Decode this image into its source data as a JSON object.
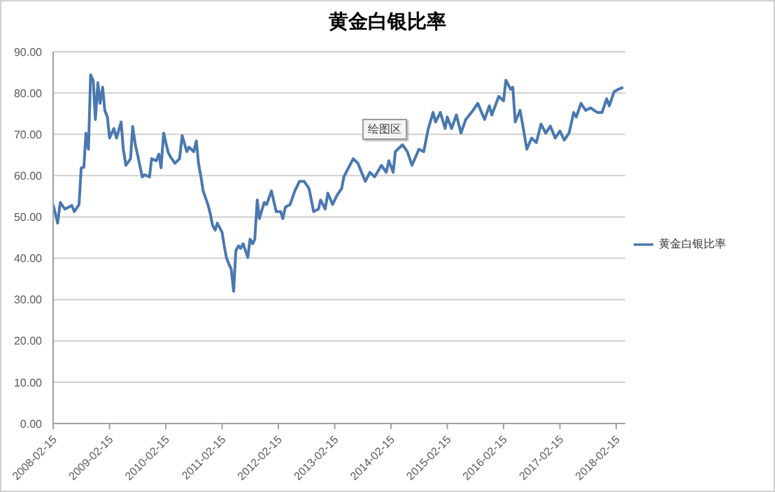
{
  "chart_data": {
    "type": "line",
    "title": "黄金白银比率",
    "annotations": [
      "绘图区"
    ],
    "x": [
      "2008-02-15",
      "2008-03-15",
      "2008-04-01",
      "2008-05-01",
      "2008-06-15",
      "2008-07-01",
      "2008-08-01",
      "2008-08-15",
      "2008-09-01",
      "2008-09-15",
      "2008-10-01",
      "2008-10-15",
      "2008-11-01",
      "2008-11-15",
      "2008-12-01",
      "2008-12-15",
      "2009-01-01",
      "2009-01-15",
      "2009-02-01",
      "2009-02-15",
      "2009-03-15",
      "2009-04-01",
      "2009-05-01",
      "2009-05-15",
      "2009-06-01",
      "2009-07-01",
      "2009-07-15",
      "2009-08-01",
      "2009-08-15",
      "2009-09-15",
      "2009-10-01",
      "2009-11-01",
      "2009-11-15",
      "2009-12-15",
      "2010-01-01",
      "2010-01-15",
      "2010-02-01",
      "2010-03-01",
      "2010-03-15",
      "2010-04-15",
      "2010-05-15",
      "2010-06-01",
      "2010-07-01",
      "2010-07-15",
      "2010-08-15",
      "2010-09-01",
      "2010-09-15",
      "2010-10-01",
      "2010-10-15",
      "2010-11-15",
      "2010-12-01",
      "2010-12-15",
      "2011-01-01",
      "2011-01-15",
      "2011-02-15",
      "2011-03-01",
      "2011-03-15",
      "2011-04-01",
      "2011-04-15",
      "2011-05-01",
      "2011-05-15",
      "2011-06-01",
      "2011-06-15",
      "2011-07-01",
      "2011-08-01",
      "2011-08-15",
      "2011-09-01",
      "2011-09-15",
      "2011-10-01",
      "2011-10-15",
      "2011-11-15",
      "2011-12-01",
      "2012-01-01",
      "2012-02-01",
      "2012-03-01",
      "2012-03-15",
      "2012-04-01",
      "2012-05-01",
      "2012-06-01",
      "2012-07-01",
      "2012-08-01",
      "2012-09-01",
      "2012-10-01",
      "2012-11-01",
      "2012-11-15",
      "2012-12-15",
      "2013-01-01",
      "2013-02-01",
      "2013-03-01",
      "2013-04-01",
      "2013-04-15",
      "2013-05-15",
      "2013-06-15",
      "2013-07-15",
      "2013-09-01",
      "2013-10-01",
      "2013-11-01",
      "2013-12-15",
      "2014-01-15",
      "2014-02-01",
      "2014-03-01",
      "2014-03-15",
      "2014-05-01",
      "2014-06-01",
      "2014-07-01",
      "2014-08-15",
      "2014-09-15",
      "2014-10-15",
      "2014-11-15",
      "2014-12-01",
      "2015-01-01",
      "2015-02-01",
      "2015-02-15",
      "2015-03-15",
      "2015-04-15",
      "2015-05-15",
      "2015-06-15",
      "2015-08-01",
      "2015-09-01",
      "2015-10-15",
      "2015-11-15",
      "2015-12-01",
      "2016-01-15",
      "2016-02-15",
      "2016-03-01",
      "2016-04-01",
      "2016-04-15",
      "2016-05-01",
      "2016-06-01",
      "2016-06-15",
      "2016-07-15",
      "2016-08-15",
      "2016-09-15",
      "2016-10-15",
      "2016-11-15",
      "2016-12-15",
      "2017-01-15",
      "2017-02-15",
      "2017-03-15",
      "2017-04-15",
      "2017-05-15",
      "2017-06-01",
      "2017-07-01",
      "2017-08-01",
      "2017-09-01",
      "2017-10-15",
      "2017-11-15",
      "2017-12-15",
      "2018-01-01",
      "2018-02-01",
      "2018-03-01",
      "2018-04-01"
    ],
    "series": [
      {
        "name": "黄金白银比率",
        "color": "#4a78b0",
        "values": [
          53.0,
          48.5,
          53.5,
          51.9,
          52.8,
          51.3,
          53.0,
          61.9,
          62.0,
          70.3,
          66.4,
          84.4,
          83.0,
          73.6,
          82.5,
          77.5,
          81.4,
          75.8,
          74.2,
          69.1,
          71.4,
          69.1,
          73.0,
          66.4,
          62.5,
          64.1,
          71.9,
          67.5,
          65.2,
          59.7,
          60.2,
          59.7,
          64.1,
          63.6,
          65.2,
          61.9,
          70.3,
          65.8,
          64.7,
          63.0,
          64.1,
          69.7,
          65.8,
          66.9,
          65.8,
          68.4,
          63.0,
          59.7,
          56.3,
          53.0,
          50.7,
          48.0,
          46.8,
          48.5,
          46.3,
          43.0,
          40.2,
          38.5,
          37.4,
          32.0,
          41.8,
          43.0,
          42.4,
          43.5,
          40.2,
          44.6,
          43.5,
          44.6,
          54.1,
          49.6,
          53.5,
          53.0,
          56.3,
          51.3,
          51.3,
          49.6,
          52.4,
          53.0,
          56.3,
          58.6,
          58.6,
          56.9,
          51.3,
          51.9,
          54.1,
          51.9,
          55.8,
          53.0,
          55.2,
          56.9,
          59.7,
          61.9,
          64.1,
          63.0,
          58.6,
          60.8,
          59.7,
          62.5,
          60.8,
          63.6,
          60.8,
          65.8,
          67.5,
          65.8,
          62.5,
          66.4,
          65.8,
          71.4,
          75.3,
          73.0,
          75.3,
          71.4,
          74.2,
          71.4,
          74.7,
          70.3,
          73.6,
          75.8,
          77.5,
          73.6,
          76.9,
          74.7,
          79.2,
          78.1,
          83.1,
          80.9,
          81.4,
          73.0,
          75.8,
          73.0,
          66.4,
          69.1,
          68.0,
          72.5,
          70.3,
          72.0,
          69.1,
          70.8,
          68.6,
          70.3,
          75.3,
          74.2,
          77.5,
          75.8,
          76.4,
          75.3,
          75.3,
          78.6,
          76.9,
          80.3,
          80.9,
          81.4
        ]
      }
    ],
    "xlim": [
      "2008-02-15",
      "2018-04-15"
    ],
    "xticks": [
      "2008-02-15",
      "2009-02-15",
      "2010-02-15",
      "2011-02-15",
      "2012-02-15",
      "2013-02-15",
      "2014-02-15",
      "2015-02-15",
      "2016-02-15",
      "2017-02-15",
      "2018-02-15"
    ],
    "ylim": [
      0,
      90
    ],
    "yticks": [
      {
        "value": 0,
        "label": "0.00"
      },
      {
        "value": 10,
        "label": "10.00"
      },
      {
        "value": 20,
        "label": "20.00"
      },
      {
        "value": 30,
        "label": "30.00"
      },
      {
        "value": 40,
        "label": "40.00"
      },
      {
        "value": 50,
        "label": "50.00"
      },
      {
        "value": 60,
        "label": "60.00"
      },
      {
        "value": 70,
        "label": "70.00"
      },
      {
        "value": 80,
        "label": "80.00"
      },
      {
        "value": 90,
        "label": "90.00"
      }
    ],
    "grid": "y",
    "legend": "right",
    "marker": "none",
    "line_style": "solid"
  }
}
